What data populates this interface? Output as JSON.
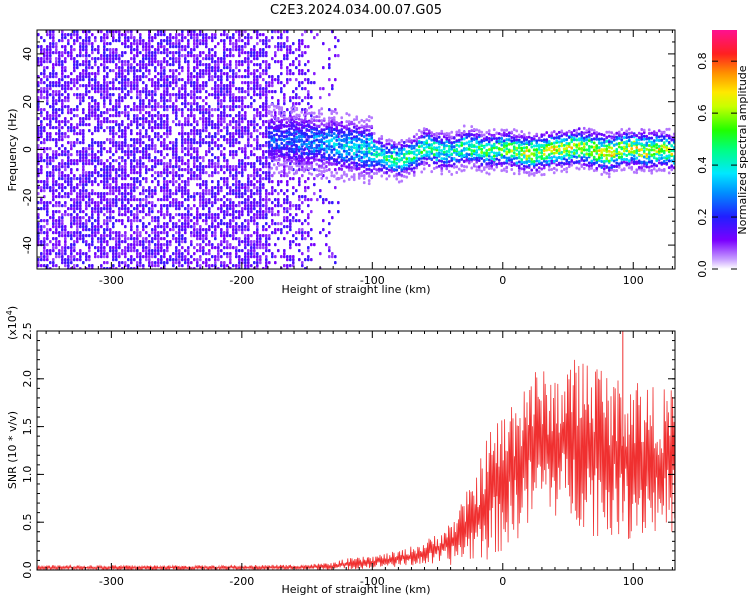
{
  "page": {
    "title": "C2E3.2024.034.00.07.G05"
  },
  "chart_data": [
    {
      "type": "heatmap",
      "xlabel": "Height of straight line (km)",
      "ylabel": "Frequency (Hz)",
      "xlim": [
        -357,
        132
      ],
      "ylim": [
        -50,
        50
      ],
      "x_ticks": [
        -300,
        -200,
        -100,
        0,
        100
      ],
      "y_ticks": [
        -40,
        -20,
        0,
        20,
        40
      ],
      "colorbar": {
        "label": "Normalized spectral amplitude",
        "range": [
          0,
          0.92
        ],
        "ticks": [
          0.0,
          0.2,
          0.4,
          0.6,
          0.8
        ]
      },
      "ridge": {
        "x": [
          -170,
          -150,
          -130,
          -110,
          -100,
          -90,
          -80,
          -70,
          -60,
          -50,
          -40,
          -30,
          -20,
          -10,
          0,
          10,
          20,
          30,
          40,
          50,
          60,
          70,
          80,
          90,
          100,
          110,
          120,
          130
        ],
        "frequency": [
          5,
          4,
          3,
          1,
          0,
          -3,
          -3,
          -2,
          2,
          0,
          0,
          2,
          1,
          0,
          1,
          0,
          -1,
          0,
          1,
          1,
          2,
          0,
          -1,
          1,
          1,
          0,
          1,
          0
        ],
        "amplitude": [
          0.3,
          0.35,
          0.4,
          0.45,
          0.5,
          0.55,
          0.55,
          0.55,
          0.6,
          0.55,
          0.5,
          0.55,
          0.6,
          0.6,
          0.65,
          0.7,
          0.75,
          0.75,
          0.75,
          0.75,
          0.75,
          0.8,
          0.8,
          0.75,
          0.75,
          0.75,
          0.75,
          0.7
        ]
      }
    },
    {
      "type": "line",
      "xlabel": "Height of straight line (km)",
      "ylabel": "SNR (10 * v/v)",
      "y_multiplier": "(x10^4)",
      "multiplier_base": "(x10",
      "multiplier_exp": "4",
      "multiplier_close": ")",
      "xlim": [
        -357,
        132
      ],
      "ylim": [
        0,
        2.5
      ],
      "x_ticks": [
        -300,
        -200,
        -100,
        0,
        100
      ],
      "y_ticks": [
        0.0,
        0.5,
        1.0,
        1.5,
        2.0,
        2.5
      ],
      "line_color": "#f03030",
      "envelope": {
        "x": [
          -357,
          -300,
          -200,
          -150,
          -130,
          -120,
          -100,
          -80,
          -60,
          -40,
          -30,
          -20,
          -10,
          0,
          10,
          20,
          30,
          40,
          50,
          60,
          70,
          80,
          90,
          100,
          110,
          120,
          132
        ],
        "min": [
          0.0,
          0.0,
          0.0,
          0.0,
          0.0,
          0.0,
          0.02,
          0.03,
          0.05,
          0.05,
          0.08,
          0.1,
          0.1,
          0.2,
          0.3,
          0.4,
          0.6,
          0.55,
          0.5,
          0.45,
          0.35,
          0.35,
          0.35,
          0.3,
          0.35,
          0.35,
          0.4
        ],
        "max": [
          0.05,
          0.05,
          0.05,
          0.06,
          0.08,
          0.12,
          0.15,
          0.2,
          0.3,
          0.5,
          0.75,
          1.05,
          1.5,
          1.65,
          1.9,
          2.15,
          2.1,
          2.05,
          2.2,
          2.25,
          2.3,
          2.1,
          2.0,
          2.1,
          1.95,
          1.9,
          1.9
        ],
        "peak": {
          "x": 92,
          "y": 2.5
        }
      }
    }
  ]
}
